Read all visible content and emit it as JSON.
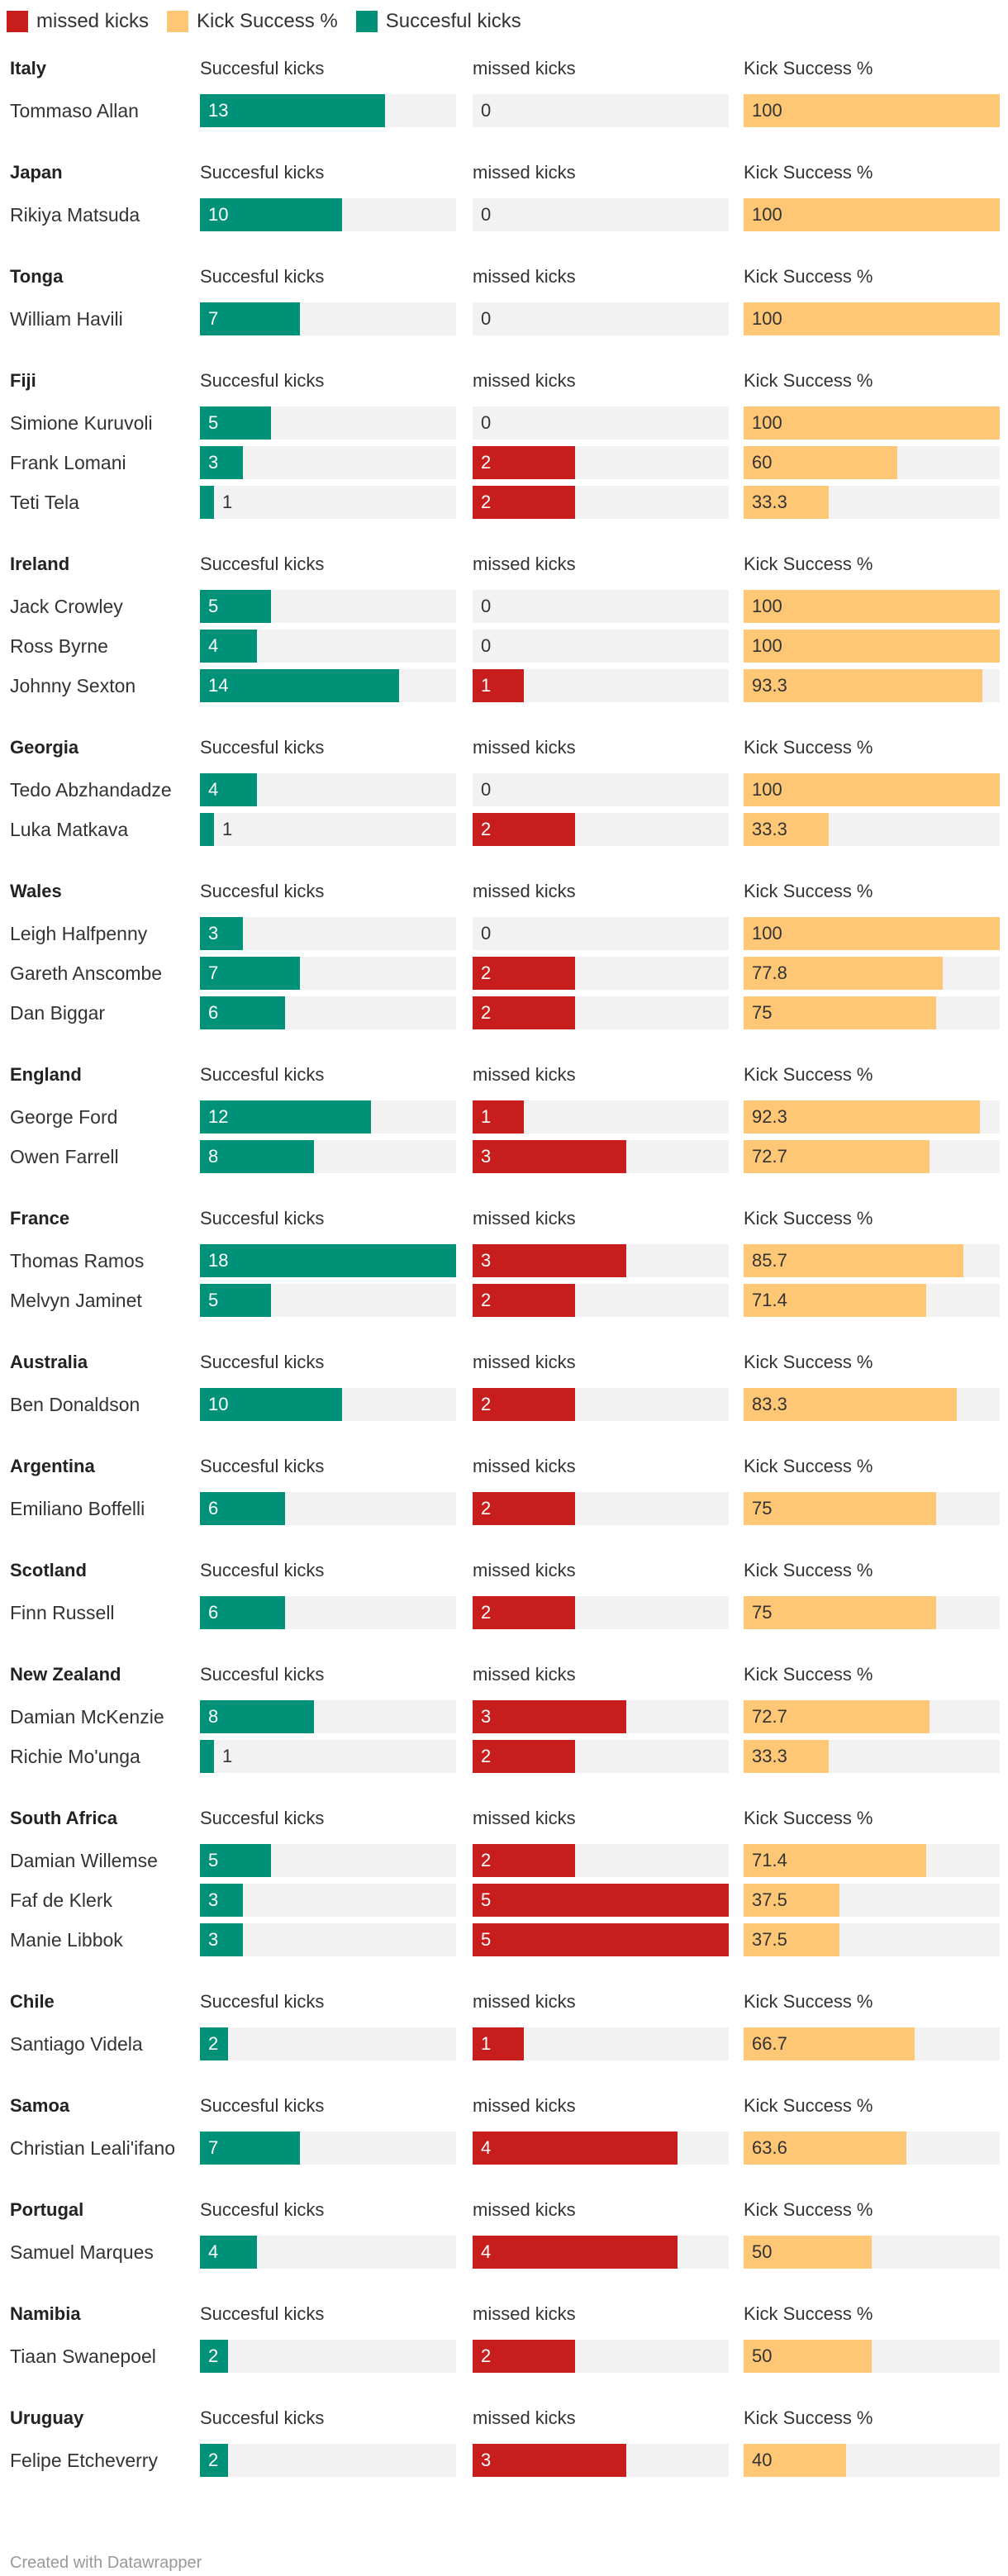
{
  "legend": [
    {
      "label": "missed kicks",
      "color": "#c71e1d"
    },
    {
      "label": "Kick Success %",
      "color": "#fdc775"
    },
    {
      "label": "Succesful kicks",
      "color": "#009179"
    }
  ],
  "colors": {
    "successful": "#009179",
    "missed": "#c71e1d",
    "percent": "#fdc775",
    "background": "#f2f2f2"
  },
  "footer": "Created with Datawrapper",
  "chart_data": {
    "type": "bar",
    "title": "",
    "columns": [
      "Succesful kicks",
      "missed kicks",
      "Kick Success %"
    ],
    "ranges": {
      "successful": [
        0,
        18
      ],
      "missed": [
        0,
        5
      ],
      "percent": [
        0,
        100
      ]
    },
    "groups": [
      {
        "name": "Italy",
        "players": [
          {
            "name": "Tommaso Allan",
            "successful": 13,
            "missed": 0,
            "percent": 100
          }
        ]
      },
      {
        "name": "Japan",
        "players": [
          {
            "name": "Rikiya Matsuda",
            "successful": 10,
            "missed": 0,
            "percent": 100
          }
        ]
      },
      {
        "name": "Tonga",
        "players": [
          {
            "name": "William Havili",
            "successful": 7,
            "missed": 0,
            "percent": 100
          }
        ]
      },
      {
        "name": "Fiji",
        "players": [
          {
            "name": "Simione Kuruvoli",
            "successful": 5,
            "missed": 0,
            "percent": 100
          },
          {
            "name": "Frank Lomani",
            "successful": 3,
            "missed": 2,
            "percent": 60
          },
          {
            "name": "Teti Tela",
            "successful": 1,
            "missed": 2,
            "percent": 33.3
          }
        ]
      },
      {
        "name": "Ireland",
        "players": [
          {
            "name": "Jack Crowley",
            "successful": 5,
            "missed": 0,
            "percent": 100
          },
          {
            "name": "Ross Byrne",
            "successful": 4,
            "missed": 0,
            "percent": 100
          },
          {
            "name": "Johnny Sexton",
            "successful": 14,
            "missed": 1,
            "percent": 93.3
          }
        ]
      },
      {
        "name": "Georgia",
        "players": [
          {
            "name": "Tedo Abzhandadze",
            "successful": 4,
            "missed": 0,
            "percent": 100
          },
          {
            "name": "Luka Matkava",
            "successful": 1,
            "missed": 2,
            "percent": 33.3
          }
        ]
      },
      {
        "name": "Wales",
        "players": [
          {
            "name": "Leigh Halfpenny",
            "successful": 3,
            "missed": 0,
            "percent": 100
          },
          {
            "name": "Gareth Anscombe",
            "successful": 7,
            "missed": 2,
            "percent": 77.8
          },
          {
            "name": "Dan Biggar",
            "successful": 6,
            "missed": 2,
            "percent": 75
          }
        ]
      },
      {
        "name": "England",
        "players": [
          {
            "name": "George Ford",
            "successful": 12,
            "missed": 1,
            "percent": 92.3
          },
          {
            "name": "Owen Farrell",
            "successful": 8,
            "missed": 3,
            "percent": 72.7
          }
        ]
      },
      {
        "name": "France",
        "players": [
          {
            "name": "Thomas Ramos",
            "successful": 18,
            "missed": 3,
            "percent": 85.7
          },
          {
            "name": "Melvyn Jaminet",
            "successful": 5,
            "missed": 2,
            "percent": 71.4
          }
        ]
      },
      {
        "name": "Australia",
        "players": [
          {
            "name": "Ben Donaldson",
            "successful": 10,
            "missed": 2,
            "percent": 83.3
          }
        ]
      },
      {
        "name": "Argentina",
        "players": [
          {
            "name": "Emiliano Boffelli",
            "successful": 6,
            "missed": 2,
            "percent": 75
          }
        ]
      },
      {
        "name": "Scotland",
        "players": [
          {
            "name": "Finn Russell",
            "successful": 6,
            "missed": 2,
            "percent": 75
          }
        ]
      },
      {
        "name": "New Zealand",
        "players": [
          {
            "name": "Damian McKenzie",
            "successful": 8,
            "missed": 3,
            "percent": 72.7
          },
          {
            "name": "Richie Mo'unga",
            "successful": 1,
            "missed": 2,
            "percent": 33.3
          }
        ]
      },
      {
        "name": "South Africa",
        "players": [
          {
            "name": "Damian Willemse",
            "successful": 5,
            "missed": 2,
            "percent": 71.4
          },
          {
            "name": "Faf de Klerk",
            "successful": 3,
            "missed": 5,
            "percent": 37.5
          },
          {
            "name": "Manie Libbok",
            "successful": 3,
            "missed": 5,
            "percent": 37.5
          }
        ]
      },
      {
        "name": "Chile",
        "players": [
          {
            "name": "Santiago Videla",
            "successful": 2,
            "missed": 1,
            "percent": 66.7
          }
        ]
      },
      {
        "name": "Samoa",
        "players": [
          {
            "name": "Christian Leali'ifano",
            "successful": 7,
            "missed": 4,
            "percent": 63.6
          }
        ]
      },
      {
        "name": "Portugal",
        "players": [
          {
            "name": "Samuel Marques",
            "successful": 4,
            "missed": 4,
            "percent": 50
          }
        ]
      },
      {
        "name": "Namibia",
        "players": [
          {
            "name": "Tiaan Swanepoel",
            "successful": 2,
            "missed": 2,
            "percent": 50
          }
        ]
      },
      {
        "name": "Uruguay",
        "players": [
          {
            "name": "Felipe Etcheverry",
            "successful": 2,
            "missed": 3,
            "percent": 40
          }
        ]
      }
    ]
  }
}
